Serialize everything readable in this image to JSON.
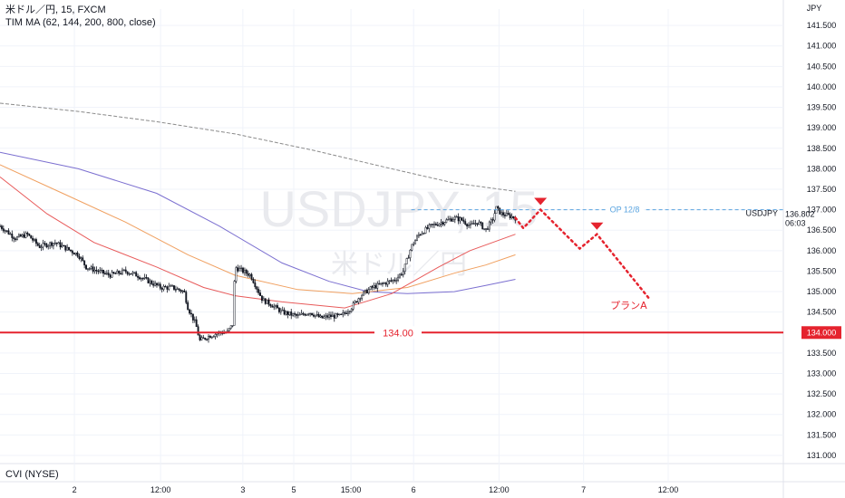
{
  "header": {
    "symbol_line": "米ドル／円, 15, FXCM",
    "indicator_line": "TIM MA (62, 144, 200, 800, close)"
  },
  "watermark": {
    "main": "USDJPY, 15",
    "sub": "米ドル／円"
  },
  "lower_pane_label": "CVI (NYSE)",
  "chart_data": {
    "type": "candlestick",
    "currency_label": "JPY",
    "y_ticks": [
      "141.500",
      "141.000",
      "140.500",
      "140.000",
      "139.500",
      "139.000",
      "138.500",
      "138.000",
      "137.500",
      "137.000",
      "136.500",
      "136.000",
      "135.500",
      "135.000",
      "134.500",
      "134.000",
      "133.500",
      "133.000",
      "132.500",
      "132.000",
      "131.500",
      "131.000"
    ],
    "ylim": [
      130.8,
      141.9
    ],
    "x_ticks": [
      {
        "label": "2",
        "pos": 0.095
      },
      {
        "label": "12:00",
        "pos": 0.205
      },
      {
        "label": "3",
        "pos": 0.31
      },
      {
        "label": "5",
        "pos": 0.375
      },
      {
        "label": "15:00",
        "pos": 0.448
      },
      {
        "label": "6",
        "pos": 0.528
      },
      {
        "label": "12:00",
        "pos": 0.637
      },
      {
        "label": "7",
        "pos": 0.745
      },
      {
        "label": "12:00",
        "pos": 0.853
      }
    ],
    "price_path": [
      [
        0,
        136.6
      ],
      [
        0.02,
        136.3
      ],
      [
        0.035,
        136.4
      ],
      [
        0.05,
        136.1
      ],
      [
        0.07,
        136.2
      ],
      [
        0.09,
        136.0
      ],
      [
        0.1,
        135.9
      ],
      [
        0.11,
        135.6
      ],
      [
        0.125,
        135.5
      ],
      [
        0.14,
        135.4
      ],
      [
        0.16,
        135.5
      ],
      [
        0.175,
        135.4
      ],
      [
        0.19,
        135.25
      ],
      [
        0.205,
        135.1
      ],
      [
        0.22,
        135.1
      ],
      [
        0.235,
        135.0
      ],
      [
        0.24,
        134.6
      ],
      [
        0.25,
        134.2
      ],
      [
        0.255,
        133.8
      ],
      [
        0.265,
        133.9
      ],
      [
        0.28,
        134.0
      ],
      [
        0.29,
        134.0
      ],
      [
        0.297,
        134.2
      ],
      [
        0.3,
        135.6
      ],
      [
        0.31,
        135.5
      ],
      [
        0.32,
        135.4
      ],
      [
        0.325,
        135.2
      ],
      [
        0.335,
        134.8
      ],
      [
        0.345,
        134.7
      ],
      [
        0.36,
        134.5
      ],
      [
        0.38,
        134.4
      ],
      [
        0.395,
        134.5
      ],
      [
        0.41,
        134.35
      ],
      [
        0.42,
        134.4
      ],
      [
        0.435,
        134.4
      ],
      [
        0.448,
        134.6
      ],
      [
        0.46,
        134.9
      ],
      [
        0.475,
        135.1
      ],
      [
        0.49,
        135.2
      ],
      [
        0.505,
        135.3
      ],
      [
        0.515,
        135.5
      ],
      [
        0.525,
        136.1
      ],
      [
        0.535,
        136.4
      ],
      [
        0.55,
        136.6
      ],
      [
        0.565,
        136.7
      ],
      [
        0.58,
        136.8
      ],
      [
        0.59,
        136.75
      ],
      [
        0.6,
        136.6
      ],
      [
        0.61,
        136.7
      ],
      [
        0.62,
        136.5
      ],
      [
        0.63,
        136.8
      ],
      [
        0.633,
        137.05
      ],
      [
        0.64,
        136.9
      ],
      [
        0.65,
        136.85
      ],
      [
        0.658,
        136.8
      ]
    ],
    "ma_series": [
      {
        "color": "#7b6fd0",
        "values": [
          [
            0,
            138.4
          ],
          [
            0.1,
            138.0
          ],
          [
            0.2,
            137.4
          ],
          [
            0.28,
            136.6
          ],
          [
            0.36,
            135.7
          ],
          [
            0.42,
            135.25
          ],
          [
            0.47,
            135.0
          ],
          [
            0.52,
            134.95
          ],
          [
            0.58,
            135.0
          ],
          [
            0.62,
            135.15
          ],
          [
            0.658,
            135.3
          ]
        ]
      },
      {
        "color": "#f0a060",
        "values": [
          [
            0,
            138.1
          ],
          [
            0.08,
            137.4
          ],
          [
            0.16,
            136.7
          ],
          [
            0.24,
            135.9
          ],
          [
            0.3,
            135.4
          ],
          [
            0.38,
            135.05
          ],
          [
            0.45,
            134.95
          ],
          [
            0.52,
            135.1
          ],
          [
            0.58,
            135.45
          ],
          [
            0.62,
            135.65
          ],
          [
            0.658,
            135.9
          ]
        ]
      },
      {
        "color": "#e85a5a",
        "values": [
          [
            0,
            137.8
          ],
          [
            0.06,
            136.9
          ],
          [
            0.12,
            136.2
          ],
          [
            0.2,
            135.6
          ],
          [
            0.26,
            135.1
          ],
          [
            0.3,
            134.9
          ],
          [
            0.36,
            134.75
          ],
          [
            0.44,
            134.6
          ],
          [
            0.5,
            134.95
          ],
          [
            0.56,
            135.6
          ],
          [
            0.6,
            136.0
          ],
          [
            0.658,
            136.4
          ]
        ]
      },
      {
        "color": "#8a8a8a",
        "dashed": true,
        "values": [
          [
            0,
            139.6
          ],
          [
            0.1,
            139.4
          ],
          [
            0.2,
            139.15
          ],
          [
            0.3,
            138.85
          ],
          [
            0.4,
            138.45
          ],
          [
            0.5,
            138.0
          ],
          [
            0.58,
            137.65
          ],
          [
            0.658,
            137.45
          ]
        ]
      }
    ],
    "support_line": {
      "value": 134.0,
      "label": "134.00",
      "axis_label": "134.000",
      "color": "#e5232e"
    },
    "op_line": {
      "value": 137.0,
      "label": "OP 12/8",
      "color": "#5aa4e0",
      "start": 0.525
    },
    "current_price": {
      "value": 136.802,
      "label": "136.802",
      "countdown": "06:03",
      "ticker": "USDJPY"
    },
    "plan": {
      "label": "プランA",
      "color": "#e5232e",
      "path": [
        [
          0.658,
          136.8
        ],
        [
          0.668,
          136.55
        ],
        [
          0.69,
          137.0
        ],
        [
          0.74,
          136.05
        ],
        [
          0.762,
          136.4
        ],
        [
          0.83,
          134.8
        ]
      ],
      "markers": [
        [
          0.69,
          137.2
        ],
        [
          0.762,
          136.6
        ]
      ]
    }
  }
}
